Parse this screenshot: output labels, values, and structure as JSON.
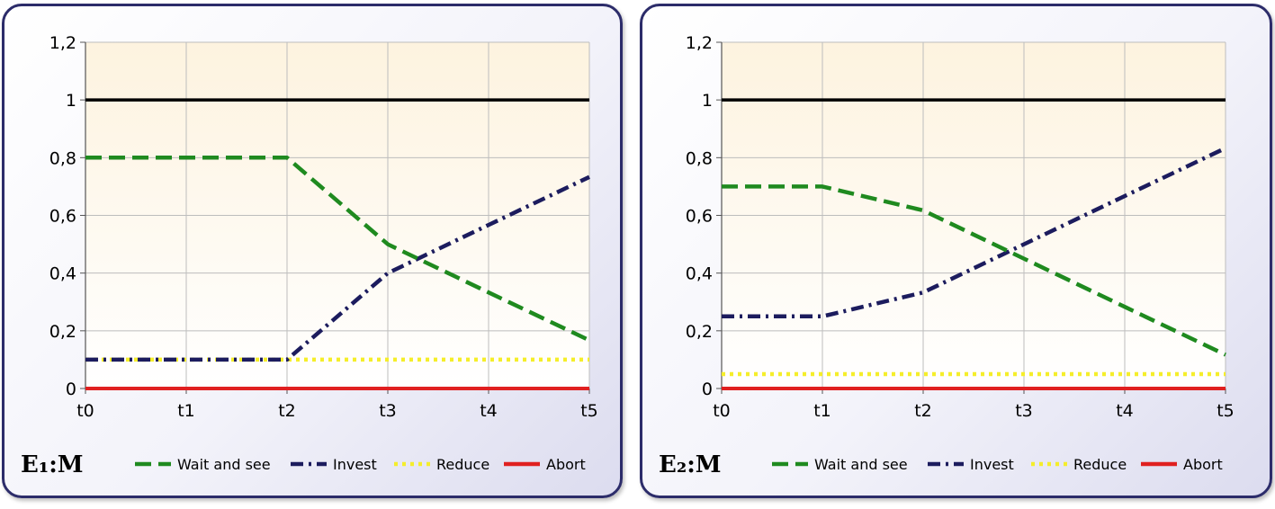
{
  "chart_data": [
    {
      "type": "line",
      "label": "E₁:M",
      "categories": [
        "t0",
        "t1",
        "t2",
        "t3",
        "t4",
        "t5"
      ],
      "yticks": [
        "0",
        "0,2",
        "0,4",
        "0,6",
        "0,8",
        "1",
        "1,2"
      ],
      "ylim": [
        0,
        1.2
      ],
      "grid": true,
      "legend_position": "bottom",
      "reference_line": {
        "y": 1,
        "color": "#000000"
      },
      "series": [
        {
          "name": "Wait and see",
          "values": [
            0.8,
            0.8,
            0.8,
            0.5,
            0.333,
            0.167
          ],
          "color": "#1f8a1f",
          "dash": "dashed"
        },
        {
          "name": "Invest",
          "values": [
            0.1,
            0.1,
            0.1,
            0.4,
            0.567,
            0.733
          ],
          "color": "#1c1c5e",
          "dash": "dashdot"
        },
        {
          "name": "Reduce",
          "values": [
            0.1,
            0.1,
            0.1,
            0.1,
            0.1,
            0.1
          ],
          "color": "#f5ee2a",
          "dash": "dotted"
        },
        {
          "name": "Abort",
          "values": [
            0,
            0,
            0,
            0,
            0,
            0
          ],
          "color": "#e02020",
          "dash": "solid"
        }
      ]
    },
    {
      "type": "line",
      "label": "E₂:M",
      "categories": [
        "t0",
        "t1",
        "t2",
        "t3",
        "t4",
        "t5"
      ],
      "yticks": [
        "0",
        "0,2",
        "0,4",
        "0,6",
        "0,8",
        "1",
        "1,2"
      ],
      "ylim": [
        0,
        1.2
      ],
      "grid": true,
      "legend_position": "bottom",
      "reference_line": {
        "y": 1,
        "color": "#000000"
      },
      "series": [
        {
          "name": "Wait and see",
          "values": [
            0.7,
            0.7,
            0.617,
            0.45,
            0.283,
            0.117
          ],
          "color": "#1f8a1f",
          "dash": "dashed"
        },
        {
          "name": "Invest",
          "values": [
            0.25,
            0.25,
            0.333,
            0.5,
            0.667,
            0.833
          ],
          "color": "#1c1c5e",
          "dash": "dashdot"
        },
        {
          "name": "Reduce",
          "values": [
            0.05,
            0.05,
            0.05,
            0.05,
            0.05,
            0.05
          ],
          "color": "#f5ee2a",
          "dash": "dotted"
        },
        {
          "name": "Abort",
          "values": [
            0,
            0,
            0,
            0,
            0,
            0
          ],
          "color": "#e02020",
          "dash": "solid"
        }
      ]
    }
  ]
}
